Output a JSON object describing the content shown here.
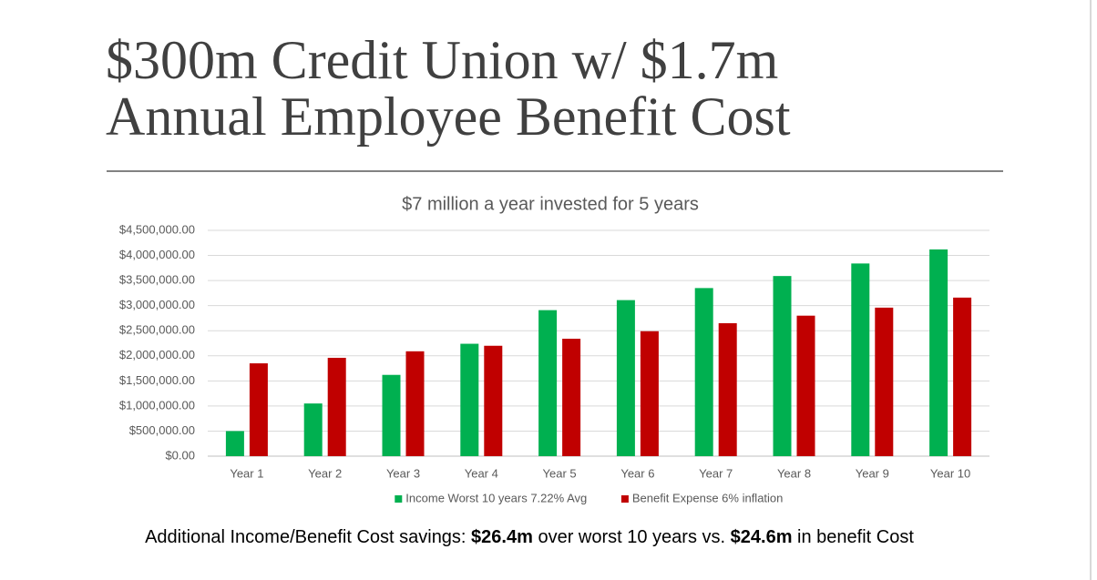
{
  "slide": {
    "title_lines": [
      "$300m Credit Union w/ $1.7m",
      "Annual Employee Benefit Cost"
    ],
    "footer": [
      "Additional Income/Benefit Cost savings: ",
      "$26.4m",
      " over worst 10 years vs. ",
      "$24.6m",
      " in benefit Cost"
    ]
  },
  "chart_data": {
    "type": "bar",
    "title": "$7 million a year invested for 5 years",
    "categories": [
      "Year 1",
      "Year 2",
      "Year 3",
      "Year 4",
      "Year 5",
      "Year 6",
      "Year 7",
      "Year 8",
      "Year 9",
      "Year 10"
    ],
    "series": [
      {
        "name": "Income Worst 10 years 7.22% Avg",
        "color": "#00b050",
        "values": [
          500000,
          1050000,
          1620000,
          2240000,
          2910000,
          3110000,
          3350000,
          3590000,
          3840000,
          4120000
        ]
      },
      {
        "name": "Benefit Expense 6% inflation",
        "color": "#c00000",
        "values": [
          1850000,
          1960000,
          2090000,
          2200000,
          2340000,
          2490000,
          2650000,
          2800000,
          2960000,
          3160000
        ]
      }
    ],
    "ylim": [
      0,
      4500000
    ],
    "yticks": [
      {
        "value": 0,
        "label": "$0.00"
      },
      {
        "value": 500000,
        "label": "$500,000.00"
      },
      {
        "value": 1000000,
        "label": "$1,000,000.00"
      },
      {
        "value": 1500000,
        "label": "$1,500,000.00"
      },
      {
        "value": 2000000,
        "label": "$2,000,000.00"
      },
      {
        "value": 2500000,
        "label": "$2,500,000.00"
      },
      {
        "value": 3000000,
        "label": "$3,000,000.00"
      },
      {
        "value": 3500000,
        "label": "$3,500,000.00"
      },
      {
        "value": 4000000,
        "label": "$4,000,000.00"
      },
      {
        "value": 4500000,
        "label": "$4,500,000.00"
      }
    ],
    "grid": true,
    "legend": "bottom"
  }
}
